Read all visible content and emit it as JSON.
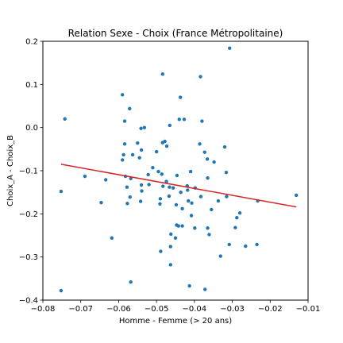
{
  "chart_data": {
    "type": "scatter",
    "title": "Relation Sexe - Choix (France Métropolitaine)",
    "xlabel": "Homme - Femme (> 20 ans)",
    "ylabel": "Choix_A - Choix_B",
    "xlim": [
      -0.08,
      -0.01
    ],
    "ylim": [
      -0.4,
      0.2
    ],
    "xticks": [
      -0.08,
      -0.07,
      -0.06,
      -0.05,
      -0.04,
      -0.03,
      -0.02,
      -0.01
    ],
    "xtick_labels": [
      "−0.08",
      "−0.07",
      "−0.06",
      "−0.05",
      "−0.04",
      "−0.03",
      "−0.02",
      "−0.01"
    ],
    "yticks": [
      -0.4,
      -0.3,
      -0.2,
      -0.1,
      0.0,
      0.1,
      0.2
    ],
    "ytick_labels": [
      "−0.4",
      "−0.3",
      "−0.2",
      "−0.1",
      "0.0",
      "0.1",
      "0.2"
    ],
    "grid": false,
    "series": [
      {
        "kind": "scatter",
        "color": "#1f77b4",
        "points": [
          [
            -0.0742,
            0.02
          ],
          [
            -0.0752,
            -0.148
          ],
          [
            -0.0752,
            -0.378
          ],
          [
            -0.0689,
            -0.113
          ],
          [
            -0.0646,
            -0.174
          ],
          [
            -0.0634,
            -0.121
          ],
          [
            -0.0618,
            -0.256
          ],
          [
            -0.059,
            0.076
          ],
          [
            -0.0584,
            0.015
          ],
          [
            -0.0584,
            -0.038
          ],
          [
            -0.0587,
            -0.063
          ],
          [
            -0.059,
            -0.075
          ],
          [
            -0.0582,
            -0.113
          ],
          [
            -0.0577,
            -0.176
          ],
          [
            -0.0578,
            -0.138
          ],
          [
            -0.0571,
            0.044
          ],
          [
            -0.057,
            -0.161
          ],
          [
            -0.0568,
            -0.118
          ],
          [
            -0.0563,
            -0.063
          ],
          [
            -0.0568,
            -0.358
          ],
          [
            -0.055,
            -0.036
          ],
          [
            -0.0545,
            -0.07
          ],
          [
            -0.0541,
            -0.002
          ],
          [
            -0.054,
            -0.052
          ],
          [
            -0.054,
            -0.133
          ],
          [
            -0.0539,
            -0.147
          ],
          [
            -0.0542,
            -0.171
          ],
          [
            -0.0532,
            0.0
          ],
          [
            -0.0522,
            -0.109
          ],
          [
            -0.052,
            -0.132
          ],
          [
            -0.051,
            -0.093
          ],
          [
            -0.05,
            -0.056
          ],
          [
            -0.0495,
            -0.102
          ],
          [
            -0.049,
            -0.165
          ],
          [
            -0.0491,
            -0.177
          ],
          [
            -0.0486,
            -0.108
          ],
          [
            -0.0483,
            -0.136
          ],
          [
            -0.0489,
            -0.287
          ],
          [
            -0.0484,
            0.124
          ],
          [
            -0.0484,
            -0.035
          ],
          [
            -0.0478,
            -0.032
          ],
          [
            -0.0474,
            -0.125
          ],
          [
            -0.0473,
            -0.043
          ],
          [
            -0.0466,
            -0.138
          ],
          [
            -0.0467,
            -0.159
          ],
          [
            -0.0465,
            0.005
          ],
          [
            -0.0462,
            -0.247
          ],
          [
            -0.0463,
            -0.276
          ],
          [
            -0.0463,
            -0.318
          ],
          [
            -0.0456,
            -0.14
          ],
          [
            -0.045,
            -0.256
          ],
          [
            -0.0448,
            -0.179
          ],
          [
            -0.0446,
            -0.111
          ],
          [
            -0.0447,
            -0.226
          ],
          [
            -0.0442,
            -0.228
          ],
          [
            -0.0437,
            0.07
          ],
          [
            -0.0436,
            -0.15
          ],
          [
            -0.0432,
            -0.188
          ],
          [
            -0.0432,
            -0.228
          ],
          [
            -0.044,
            0.019
          ],
          [
            -0.0427,
            0.019
          ],
          [
            -0.0419,
            -0.135
          ],
          [
            -0.0418,
            -0.145
          ],
          [
            -0.0416,
            -0.17
          ],
          [
            -0.041,
            -0.102
          ],
          [
            -0.0408,
            -0.204
          ],
          [
            -0.0413,
            -0.367
          ],
          [
            -0.0407,
            -0.175
          ],
          [
            -0.0399,
            -0.233
          ],
          [
            -0.0398,
            -0.14
          ],
          [
            -0.0386,
            -0.038
          ],
          [
            -0.0384,
            0.118
          ],
          [
            -0.038,
            0.015
          ],
          [
            -0.0383,
            -0.16
          ],
          [
            -0.0373,
            -0.057
          ],
          [
            -0.0366,
            -0.073
          ],
          [
            -0.0365,
            -0.117
          ],
          [
            -0.0365,
            -0.233
          ],
          [
            -0.0361,
            -0.248
          ],
          [
            -0.0372,
            -0.375
          ],
          [
            -0.0355,
            -0.19
          ],
          [
            -0.0348,
            -0.08
          ],
          [
            -0.0337,
            -0.17
          ],
          [
            -0.0331,
            -0.298
          ],
          [
            -0.032,
            -0.045
          ],
          [
            -0.0316,
            -0.104
          ],
          [
            -0.0315,
            -0.16
          ],
          [
            -0.0308,
            -0.271
          ],
          [
            -0.0307,
            0.184
          ],
          [
            -0.0292,
            -0.232
          ],
          [
            -0.0288,
            -0.209
          ],
          [
            -0.028,
            -0.198
          ],
          [
            -0.0265,
            -0.275
          ],
          [
            -0.0233,
            -0.17
          ],
          [
            -0.0235,
            -0.271
          ],
          [
            -0.0131,
            -0.157
          ]
        ]
      },
      {
        "kind": "line",
        "color": "#d62728",
        "x": [
          -0.0752,
          -0.0131
        ],
        "y": [
          -0.085,
          -0.184
        ]
      }
    ]
  }
}
